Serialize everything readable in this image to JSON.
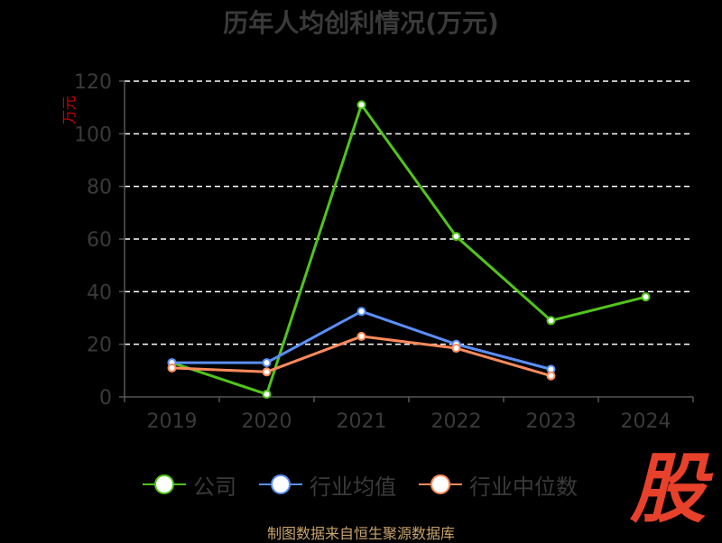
{
  "title": "历年人均创利情况(万元)",
  "footer": "制图数据来自恒生聚源数据库",
  "logo_text": "股",
  "chart_data": {
    "type": "line",
    "title": "历年人均创利情况(万元)",
    "ylabel": "万元",
    "xlabel": "",
    "categories": [
      "2019",
      "2020",
      "2021",
      "2022",
      "2023",
      "2024"
    ],
    "ylim": [
      0,
      120
    ],
    "yticks": [
      0,
      20,
      40,
      60,
      80,
      100,
      120
    ],
    "grid": true,
    "legend_position": "bottom",
    "series": [
      {
        "name": "公司",
        "color": "#52c41a",
        "values": [
          13,
          1,
          111,
          61,
          29,
          38
        ]
      },
      {
        "name": "行业均值",
        "color": "#5b8ff9",
        "values": [
          13,
          13,
          32.5,
          20,
          10.5,
          null
        ]
      },
      {
        "name": "行业中位数",
        "color": "#ff8a5b",
        "values": [
          11,
          9.5,
          23,
          18.5,
          8,
          null
        ]
      }
    ]
  },
  "colors": {
    "axis": "#555555",
    "grid": "#ffffff",
    "tick_text": "#3a3a3a",
    "ylabel": "#cc0000"
  }
}
